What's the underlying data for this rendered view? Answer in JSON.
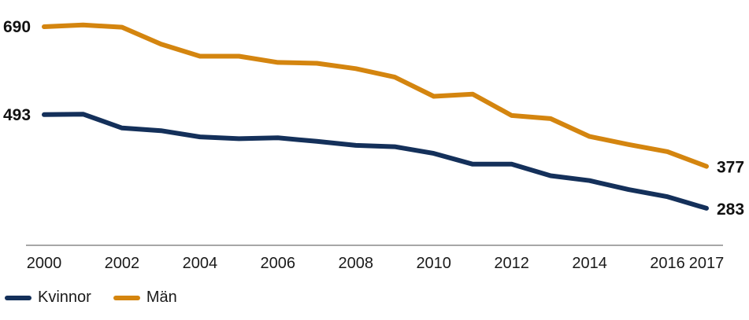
{
  "chart_data": {
    "type": "line",
    "title": "",
    "xlabel": "",
    "ylabel": "",
    "x": [
      2000,
      2001,
      2002,
      2003,
      2004,
      2005,
      2006,
      2007,
      2008,
      2009,
      2010,
      2011,
      2012,
      2013,
      2014,
      2015,
      2016,
      2017
    ],
    "x_tick_labels": [
      "2000",
      "2002",
      "2004",
      "2006",
      "2008",
      "2010",
      "2012",
      "2014",
      "2016",
      "2017"
    ],
    "ylim": [
      200,
      720
    ],
    "grid": false,
    "legend_position": "bottom-left",
    "series": [
      {
        "name": "Kvinnor",
        "color": "#14305a",
        "values": [
          493,
          494,
          463,
          457,
          443,
          439,
          441,
          433,
          424,
          421,
          406,
          382,
          382,
          356,
          345,
          325,
          309,
          283
        ],
        "start_label": "493",
        "end_label": "283"
      },
      {
        "name": "Män",
        "color": "#d4850f",
        "values": [
          690,
          694,
          689,
          651,
          624,
          624,
          610,
          608,
          596,
          577,
          534,
          539,
          491,
          484,
          444,
          426,
          410,
          377
        ],
        "start_label": "690",
        "end_label": "377"
      }
    ]
  }
}
